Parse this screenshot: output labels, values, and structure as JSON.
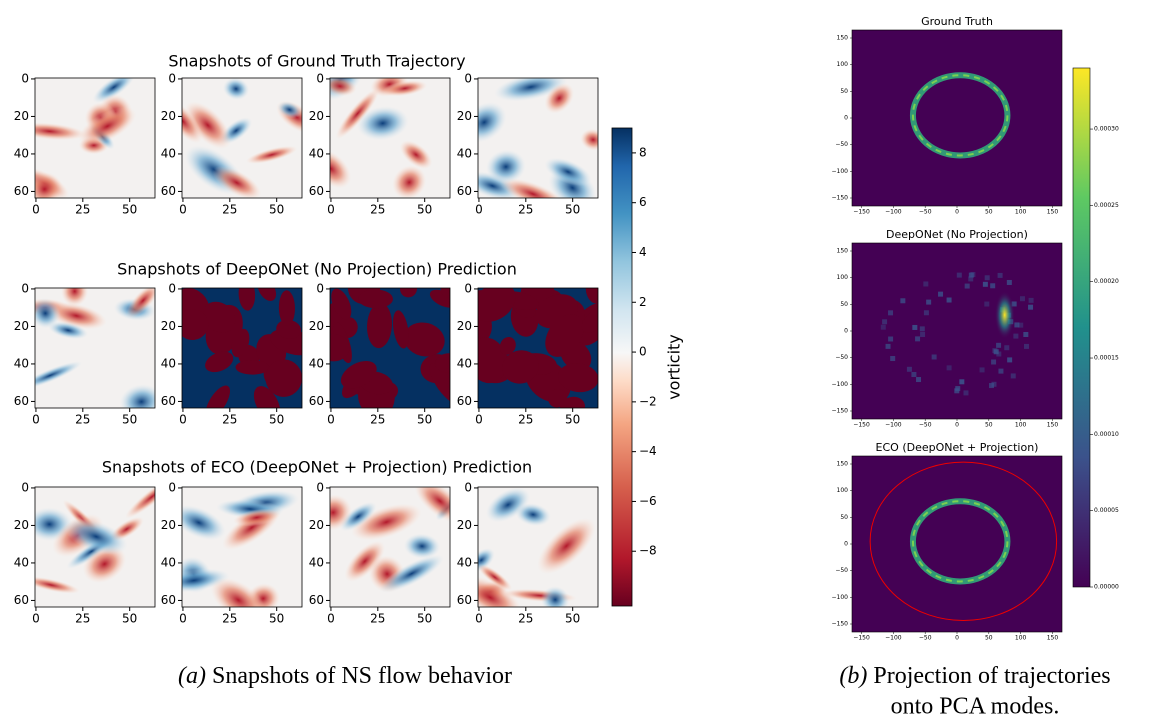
{
  "panel_a": {
    "rows": [
      {
        "title": "Snapshots of Ground Truth Trajectory"
      },
      {
        "title": "Snapshots of DeepONet (No Projection) Prediction"
      },
      {
        "title": "Snapshots of ECO (DeepONet + Projection) Prediction"
      }
    ],
    "xlim": [
      -0.5,
      63.5
    ],
    "ylim": [
      -0.5,
      63.5
    ],
    "xticks": [
      0,
      25,
      50
    ],
    "yticks": [
      0,
      20,
      40,
      60
    ],
    "colorbar": {
      "label": "vorticity",
      "lim": [
        -10.2,
        9
      ],
      "ticks": [
        {
          "value": -8,
          "label": "−8"
        },
        {
          "value": -6,
          "label": "−6"
        },
        {
          "value": -4,
          "label": "−4"
        },
        {
          "value": -2,
          "label": "−2"
        },
        0,
        2,
        4,
        6,
        8
      ]
    },
    "caption": {
      "label": "(a)",
      "text": "Snapshots of NS flow behavior"
    }
  },
  "panel_b": {
    "plots": [
      {
        "title": "Ground Truth"
      },
      {
        "title": "DeepONet (No Projection)"
      },
      {
        "title": "ECO (DeepONet + Projection)"
      }
    ],
    "lim": [
      -165,
      165
    ],
    "ticks": [
      {
        "value": -150,
        "label": "−150"
      },
      {
        "value": -100,
        "label": "−100"
      },
      {
        "value": -50,
        "label": "−50"
      },
      0,
      50,
      100,
      150
    ],
    "colorbar": {
      "lim": [
        0,
        0.00034
      ],
      "ticks": [
        {
          "value": 0,
          "label": "0.00000"
        },
        {
          "value": 5e-05,
          "label": "0.00005"
        },
        {
          "value": 0.0001,
          "label": "0.00010"
        },
        {
          "value": 0.00015,
          "label": "0.00015"
        },
        {
          "value": 0.0002,
          "label": "0.00020"
        },
        {
          "value": 0.00025,
          "label": "0.00025"
        },
        {
          "value": 0.0003,
          "label": "0.00030"
        }
      ]
    },
    "caption": {
      "label": "(b)",
      "line1": "Projection of trajectories",
      "line2": "onto PCA modes."
    }
  }
}
